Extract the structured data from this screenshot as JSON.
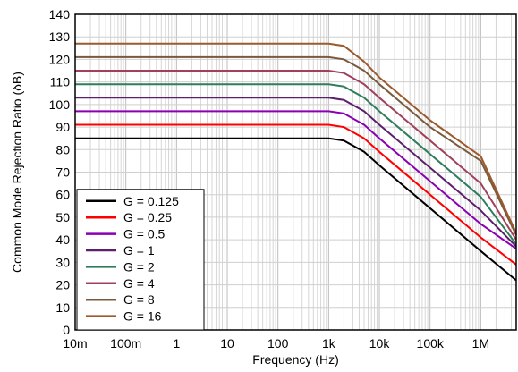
{
  "chart_data": {
    "type": "line",
    "title": "",
    "xlabel": "Frequency (Hz)",
    "ylabel": "Common Mode Rejection Ratio (δB)",
    "x_scale": "log",
    "xlim": [
      0.01,
      5000000
    ],
    "ylim": [
      0,
      140
    ],
    "x_ticks": [
      {
        "value": 0.01,
        "label": "10m"
      },
      {
        "value": 0.1,
        "label": "100m"
      },
      {
        "value": 1,
        "label": "1"
      },
      {
        "value": 10,
        "label": "10"
      },
      {
        "value": 100,
        "label": "100"
      },
      {
        "value": 1000,
        "label": "1k"
      },
      {
        "value": 10000,
        "label": "10k"
      },
      {
        "value": 100000,
        "label": "100k"
      },
      {
        "value": 1000000,
        "label": "1M"
      }
    ],
    "y_ticks": [
      0,
      10,
      20,
      30,
      40,
      50,
      60,
      70,
      80,
      90,
      100,
      110,
      120,
      130,
      140
    ],
    "grid": true,
    "legend_position": "bottom-left",
    "series": [
      {
        "name": "G = 0.125",
        "color": "#000000",
        "points": [
          [
            0.01,
            85
          ],
          [
            1000,
            85
          ],
          [
            2000,
            84
          ],
          [
            5000,
            79
          ],
          [
            10000,
            73
          ],
          [
            100000,
            54
          ],
          [
            1000000,
            35
          ],
          [
            5000000,
            22
          ]
        ]
      },
      {
        "name": "G = 0.25",
        "color": "#ff0000",
        "points": [
          [
            0.01,
            91
          ],
          [
            1000,
            91
          ],
          [
            2000,
            90
          ],
          [
            5000,
            85
          ],
          [
            10000,
            79
          ],
          [
            100000,
            60
          ],
          [
            1000000,
            41
          ],
          [
            5000000,
            29
          ]
        ]
      },
      {
        "name": "G = 0.5",
        "color": "#8b00b3",
        "points": [
          [
            0.01,
            97
          ],
          [
            1000,
            97
          ],
          [
            2000,
            96
          ],
          [
            5000,
            91
          ],
          [
            10000,
            85
          ],
          [
            100000,
            66
          ],
          [
            1000000,
            47
          ],
          [
            5000000,
            36
          ]
        ]
      },
      {
        "name": "G = 1",
        "color": "#5b1f6b",
        "points": [
          [
            0.01,
            103
          ],
          [
            1000,
            103
          ],
          [
            2000,
            102
          ],
          [
            5000,
            97
          ],
          [
            10000,
            91
          ],
          [
            100000,
            72
          ],
          [
            1000000,
            53
          ],
          [
            5000000,
            37
          ]
        ]
      },
      {
        "name": "G = 2",
        "color": "#2e7d5b",
        "points": [
          [
            0.01,
            109
          ],
          [
            1000,
            109
          ],
          [
            2000,
            108
          ],
          [
            5000,
            103
          ],
          [
            10000,
            97
          ],
          [
            100000,
            78
          ],
          [
            1000000,
            59
          ],
          [
            5000000,
            38
          ]
        ]
      },
      {
        "name": "G = 4",
        "color": "#a0405a",
        "points": [
          [
            0.01,
            115
          ],
          [
            1000,
            115
          ],
          [
            2000,
            114
          ],
          [
            5000,
            109
          ],
          [
            10000,
            103
          ],
          [
            100000,
            84
          ],
          [
            1000000,
            65
          ],
          [
            5000000,
            40
          ]
        ]
      },
      {
        "name": "G = 8",
        "color": "#7a5a3c",
        "points": [
          [
            0.01,
            121
          ],
          [
            1000,
            121
          ],
          [
            2000,
            120
          ],
          [
            5000,
            115
          ],
          [
            10000,
            109
          ],
          [
            100000,
            90
          ],
          [
            1000000,
            75
          ],
          [
            5000000,
            42
          ]
        ]
      },
      {
        "name": "G = 16",
        "color": "#9c5a2c",
        "points": [
          [
            0.01,
            127
          ],
          [
            1000,
            127
          ],
          [
            2000,
            126
          ],
          [
            5000,
            119
          ],
          [
            10000,
            112
          ],
          [
            100000,
            93
          ],
          [
            1000000,
            77
          ],
          [
            5000000,
            43
          ]
        ]
      }
    ]
  }
}
